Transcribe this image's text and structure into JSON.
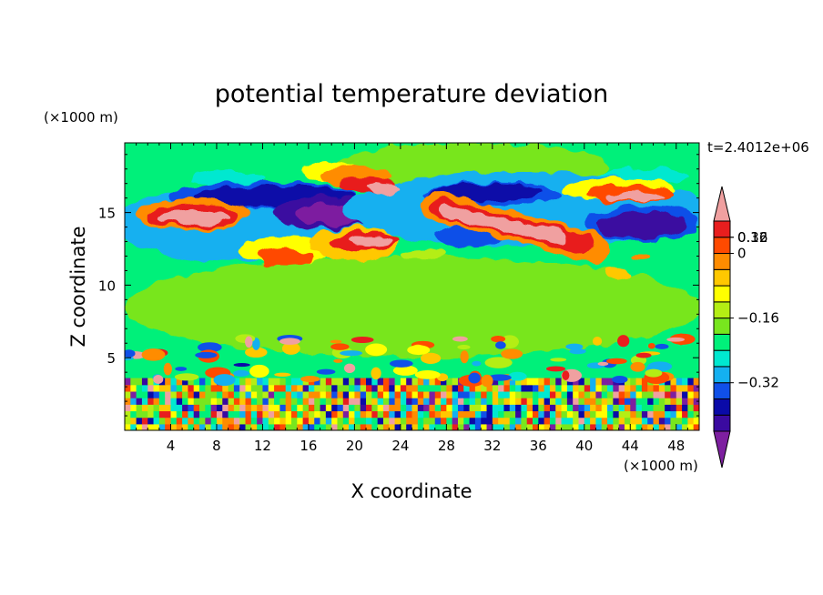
{
  "chart_data": {
    "type": "heatmap",
    "title": "potential temperature deviation",
    "xlabel": "X coordinate",
    "ylabel": "Z coordinate",
    "x_unit": "(×1000 m)",
    "y_unit": "(×1000 m)",
    "time_label": "t=2.4012e+06",
    "xlim": [
      0,
      50
    ],
    "ylim": [
      0,
      19.8
    ],
    "x_ticks": [
      {
        "value": 4,
        "label": "4"
      },
      {
        "value": 8,
        "label": "8"
      },
      {
        "value": 12,
        "label": "12"
      },
      {
        "value": 16,
        "label": "16"
      },
      {
        "value": 20,
        "label": "20"
      },
      {
        "value": 24,
        "label": "24"
      },
      {
        "value": 28,
        "label": "28"
      },
      {
        "value": 32,
        "label": "32"
      },
      {
        "value": 36,
        "label": "36"
      },
      {
        "value": 40,
        "label": "40"
      },
      {
        "value": 44,
        "label": "44"
      },
      {
        "value": 48,
        "label": "48"
      }
    ],
    "y_ticks": [
      {
        "value": 5,
        "label": "5"
      },
      {
        "value": 10,
        "label": "10"
      },
      {
        "value": 15,
        "label": "15"
      }
    ],
    "colorbar": {
      "colors": [
        "#7d1fa0",
        "#3a0aa0",
        "#0a0aa8",
        "#1050e8",
        "#14b0f0",
        "#00e8d0",
        "#00f07a",
        "#78e61e",
        "#b4ee14",
        "#ffff00",
        "#ffc800",
        "#ff8c00",
        "#ff4a00",
        "#e81e1e",
        "#f0a0a0"
      ],
      "tick_labels": [
        {
          "level_index": 2,
          "label": "−0.32"
        },
        {
          "level_index": 4,
          "label": "−0.16"
        },
        {
          "level_index": 6,
          "label": "0"
        },
        {
          "level_index": 8,
          "label": "0.16"
        },
        {
          "level_index": 10,
          "label": "0.32"
        }
      ]
    },
    "background_level": 6,
    "features": [
      {
        "kind": "ellipse",
        "level": 7,
        "x": 25,
        "y": 8.5,
        "rx": 25,
        "ry": 3.5
      },
      {
        "kind": "ellipse",
        "level": 7,
        "x": 30,
        "y": 18.2,
        "rx": 12,
        "ry": 1.6
      },
      {
        "kind": "ellipse",
        "level": 5,
        "x": 9,
        "y": 17.3,
        "rx": 3,
        "ry": 0.5
      },
      {
        "kind": "ellipse",
        "level": 5,
        "x": 45,
        "y": 17.5,
        "rx": 4,
        "ry": 0.6
      },
      {
        "kind": "ellipse",
        "level": 4,
        "x": 10,
        "y": 14.2,
        "rx": 11,
        "ry": 2.6
      },
      {
        "kind": "ellipse",
        "level": 3,
        "x": 12,
        "y": 16.2,
        "rx": 8,
        "ry": 0.9
      },
      {
        "kind": "ellipse",
        "level": 2,
        "x": 13,
        "y": 16.1,
        "rx": 7,
        "ry": 0.7
      },
      {
        "kind": "ellipse",
        "level": 1,
        "x": 18,
        "y": 15,
        "rx": 5,
        "ry": 1.1
      },
      {
        "kind": "ellipse",
        "level": 0,
        "x": 18.5,
        "y": 14.9,
        "rx": 3.5,
        "ry": 0.8
      },
      {
        "kind": "ellipse",
        "level": 4,
        "x": 35,
        "y": 15.2,
        "rx": 16,
        "ry": 2.6
      },
      {
        "kind": "ellipse",
        "level": 3,
        "x": 32,
        "y": 16.3,
        "rx": 6,
        "ry": 0.8
      },
      {
        "kind": "ellipse",
        "level": 2,
        "x": 31.5,
        "y": 16.4,
        "rx": 5,
        "ry": 0.6
      },
      {
        "kind": "ellipse",
        "level": 3,
        "x": 45,
        "y": 14.2,
        "rx": 5,
        "ry": 1.2
      },
      {
        "kind": "ellipse",
        "level": 1,
        "x": 45,
        "y": 14.1,
        "rx": 4,
        "ry": 0.9
      },
      {
        "kind": "ellipse",
        "level": 3,
        "x": 30,
        "y": 13.4,
        "rx": 3,
        "ry": 0.8
      },
      {
        "kind": "ellipse",
        "level": 9,
        "x": 18,
        "y": 17.8,
        "rx": 2.5,
        "ry": 0.7
      },
      {
        "kind": "ellipse",
        "level": 11,
        "x": 20,
        "y": 17.5,
        "rx": 3,
        "ry": 0.7
      },
      {
        "kind": "ellipse",
        "level": 13,
        "x": 21,
        "y": 16.9,
        "rx": 2.5,
        "ry": 0.5
      },
      {
        "kind": "ellipse",
        "level": 14,
        "x": 22.5,
        "y": 16.7,
        "rx": 1.5,
        "ry": 0.3
      },
      {
        "kind": "ellipse",
        "level": 9,
        "x": 43,
        "y": 16.6,
        "rx": 5,
        "ry": 0.8
      },
      {
        "kind": "ellipse",
        "level": 12,
        "x": 44,
        "y": 16.3,
        "rx": 4,
        "ry": 0.6
      },
      {
        "kind": "ellipse",
        "level": 14,
        "x": 44.5,
        "y": 16.1,
        "rx": 2.5,
        "ry": 0.3
      },
      {
        "kind": "ellipse",
        "level": 11,
        "x": 6,
        "y": 14.9,
        "rx": 5,
        "ry": 1.1
      },
      {
        "kind": "ellipse",
        "level": 13,
        "x": 6,
        "y": 14.8,
        "rx": 4,
        "ry": 0.8
      },
      {
        "kind": "ellipse",
        "level": 14,
        "x": 6,
        "y": 14.7,
        "rx": 3,
        "ry": 0.5
      },
      {
        "kind": "ellipse",
        "level": 9,
        "x": 14,
        "y": 12.4,
        "rx": 4,
        "ry": 1.0
      },
      {
        "kind": "ellipse",
        "level": 12,
        "x": 14,
        "y": 11.9,
        "rx": 2.5,
        "ry": 0.6
      },
      {
        "kind": "ellipse",
        "level": 10,
        "x": 20,
        "y": 12.8,
        "rx": 4,
        "ry": 1.1
      },
      {
        "kind": "ellipse",
        "level": 13,
        "x": 21,
        "y": 13.0,
        "rx": 3,
        "ry": 0.6
      },
      {
        "kind": "ellipse",
        "level": 14,
        "x": 21.5,
        "y": 13.0,
        "rx": 2,
        "ry": 0.35
      },
      {
        "kind": "band",
        "level": 11,
        "x1": 27,
        "y1": 15.5,
        "x2": 41,
        "y2": 12.5,
        "w": 2.0
      },
      {
        "kind": "band",
        "level": 13,
        "x1": 27.5,
        "y1": 15.3,
        "x2": 40,
        "y2": 12.8,
        "w": 1.3
      },
      {
        "kind": "band",
        "level": 14,
        "x1": 28,
        "y1": 15.1,
        "x2": 38,
        "y2": 13.2,
        "w": 0.8
      },
      {
        "kind": "ellipse",
        "level": 10,
        "x": 43,
        "y": 10.8,
        "rx": 1.2,
        "ry": 0.4
      },
      {
        "kind": "ellipse",
        "level": 11,
        "x": 45,
        "y": 11.8,
        "rx": 1,
        "ry": 0.3
      },
      {
        "kind": "ellipse",
        "level": 8,
        "x": 26,
        "y": 12.1,
        "rx": 2,
        "ry": 0.4
      }
    ]
  }
}
